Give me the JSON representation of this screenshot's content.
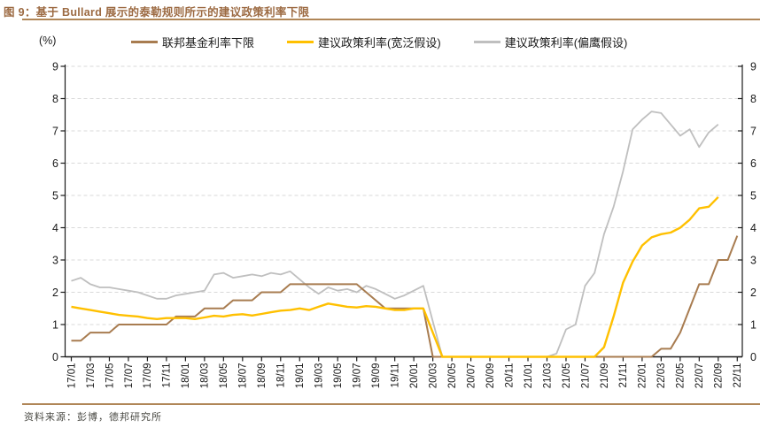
{
  "header": {
    "title": "图 9：基于 Bullard 展示的泰勒规则所示的建议政策利率下限"
  },
  "footer": {
    "source": "资料来源：彭博，德邦研究所"
  },
  "colors": {
    "title": "#9C6A42",
    "rule": "#B08657",
    "brown": "#A87C50",
    "yellow": "#FFC000",
    "gray": "#BFBFBF",
    "grid": "#D9D9D9",
    "axis": "#1A1A1A",
    "tick_text": "#1A1A1A",
    "footer_text": "#4A4A44"
  },
  "chart_data": {
    "type": "line",
    "title": "基于 Bullard 展示的泰勒规则所示的建议政策利率下限",
    "unit_label": "(%)",
    "xlabel": "",
    "ylabel": "(%)",
    "ylim": [
      0,
      9
    ],
    "yticks": [
      0,
      1,
      2,
      3,
      4,
      5,
      6,
      7,
      8,
      9
    ],
    "grid": "horizontal-dashed",
    "legend_position": "top",
    "x_label_every": 2,
    "x": [
      "17/01",
      "17/02",
      "17/03",
      "17/04",
      "17/05",
      "17/06",
      "17/07",
      "17/08",
      "17/09",
      "17/10",
      "17/11",
      "17/12",
      "18/01",
      "18/02",
      "18/03",
      "18/04",
      "18/05",
      "18/06",
      "18/07",
      "18/08",
      "18/09",
      "18/10",
      "18/11",
      "18/12",
      "19/01",
      "19/02",
      "19/03",
      "19/04",
      "19/05",
      "19/06",
      "19/07",
      "19/08",
      "19/09",
      "19/10",
      "19/11",
      "19/12",
      "20/01",
      "20/02",
      "20/03",
      "20/04",
      "20/05",
      "20/06",
      "20/07",
      "20/08",
      "20/09",
      "20/10",
      "20/11",
      "20/12",
      "21/01",
      "21/02",
      "21/03",
      "21/04",
      "21/05",
      "21/06",
      "21/07",
      "21/08",
      "21/09",
      "21/10",
      "21/11",
      "21/12",
      "22/01",
      "22/02",
      "22/03",
      "22/04",
      "22/05",
      "22/06",
      "22/07",
      "22/08",
      "22/09",
      "22/10",
      "22/11"
    ],
    "series": [
      {
        "name": "联邦基金利率下限",
        "color_key": "brown",
        "values": [
          0.5,
          0.5,
          0.75,
          0.75,
          0.75,
          1.0,
          1.0,
          1.0,
          1.0,
          1.0,
          1.0,
          1.25,
          1.25,
          1.25,
          1.5,
          1.5,
          1.5,
          1.75,
          1.75,
          1.75,
          2.0,
          2.0,
          2.0,
          2.25,
          2.25,
          2.25,
          2.25,
          2.25,
          2.25,
          2.25,
          2.25,
          2.0,
          1.75,
          1.5,
          1.5,
          1.5,
          1.5,
          1.5,
          0,
          0,
          0,
          0,
          0,
          0,
          0,
          0,
          0,
          0,
          0,
          0,
          0,
          0,
          0,
          0,
          0,
          0,
          0,
          0,
          0,
          0,
          0,
          0,
          0.25,
          0.25,
          0.75,
          1.5,
          2.25,
          2.25,
          3.0,
          3.0,
          3.75
        ]
      },
      {
        "name": "建议政策利率(宽泛假设)",
        "color_key": "yellow",
        "values": [
          1.55,
          1.5,
          1.45,
          1.4,
          1.35,
          1.3,
          1.27,
          1.25,
          1.2,
          1.17,
          1.2,
          1.2,
          1.2,
          1.17,
          1.22,
          1.27,
          1.25,
          1.3,
          1.32,
          1.28,
          1.33,
          1.38,
          1.43,
          1.45,
          1.5,
          1.45,
          1.55,
          1.65,
          1.6,
          1.55,
          1.53,
          1.57,
          1.55,
          1.5,
          1.45,
          1.45,
          1.5,
          1.5,
          0.75,
          0,
          0,
          0,
          0,
          0,
          0,
          0,
          0,
          0,
          0,
          0,
          0,
          0,
          0,
          0,
          0,
          0,
          0.3,
          1.25,
          2.3,
          2.95,
          3.45,
          3.7,
          3.8,
          3.85,
          4.0,
          4.25,
          4.6,
          4.65,
          4.95,
          null,
          null
        ]
      },
      {
        "name": "建议政策利率(偏鹰假设)",
        "color_key": "gray",
        "values": [
          2.35,
          2.45,
          2.25,
          2.15,
          2.15,
          2.1,
          2.05,
          2.0,
          1.9,
          1.8,
          1.8,
          1.9,
          1.95,
          2.0,
          2.05,
          2.55,
          2.6,
          2.45,
          2.5,
          2.55,
          2.5,
          2.6,
          2.55,
          2.65,
          2.4,
          2.15,
          1.95,
          2.15,
          2.05,
          2.1,
          2.0,
          2.2,
          2.1,
          1.95,
          1.8,
          1.9,
          2.05,
          2.2,
          1.1,
          0,
          0,
          0,
          0,
          0,
          0,
          0,
          0,
          0,
          0,
          0,
          0,
          0.1,
          0.85,
          1.0,
          2.2,
          2.6,
          3.8,
          4.65,
          5.75,
          7.05,
          7.35,
          7.6,
          7.55,
          7.2,
          6.85,
          7.05,
          6.5,
          6.95,
          7.2,
          null,
          null
        ]
      }
    ]
  }
}
